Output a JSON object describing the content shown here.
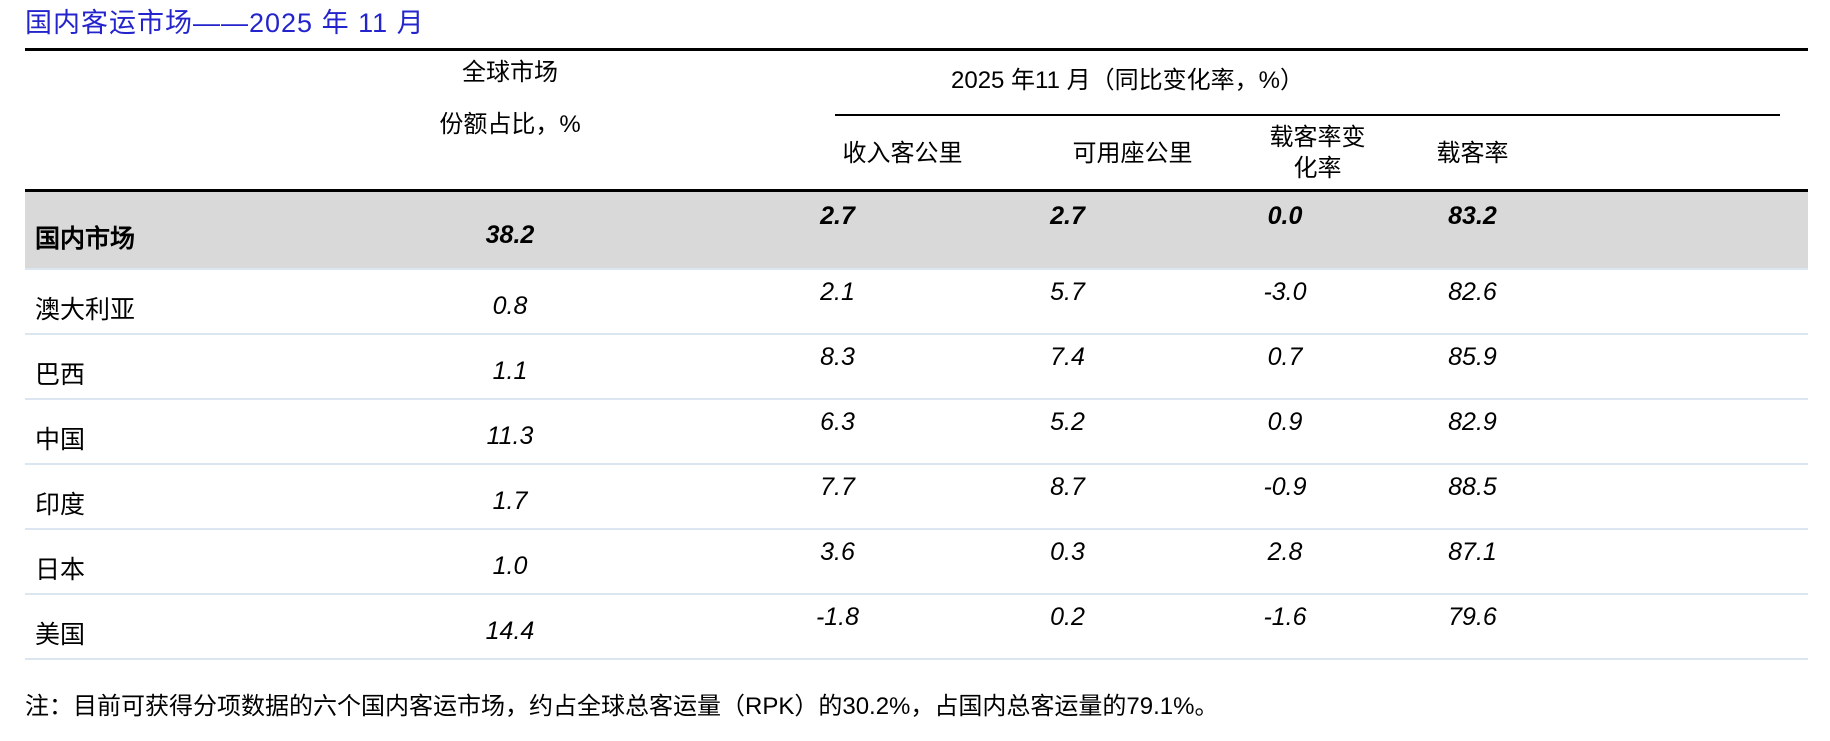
{
  "page_title": "国内客运市场——2025 年 11 月",
  "colors": {
    "title_blue": "#2424CC",
    "highlight_row_bg": "#D9D9D9",
    "row_separator": "#DCE6F1",
    "rule_black": "#000000"
  },
  "table": {
    "share_header_line1": "全球市场",
    "share_header_line2": "份额占比，%",
    "metrics_group_header": "2025 年11 月（同比变化率，%）",
    "metric_headers": [
      {
        "key": "rpk",
        "lines": [
          "收入客公里"
        ]
      },
      {
        "key": "ask",
        "lines": [
          "可用座公里"
        ]
      },
      {
        "key": "load-factor-change",
        "lines": [
          "载客率变",
          "化率"
        ]
      },
      {
        "key": "load-factor",
        "lines": [
          "载客率"
        ]
      }
    ],
    "rows": [
      {
        "key": "domestic",
        "name": "国内市场",
        "share": "38.2",
        "rpk": "2.7",
        "ask": "2.7",
        "lf_change": "0.0",
        "lf": "83.2",
        "highlight": true
      },
      {
        "key": "australia",
        "name": "澳大利亚",
        "share": "0.8",
        "rpk": "2.1",
        "ask": "5.7",
        "lf_change": "-3.0",
        "lf": "82.6",
        "highlight": false
      },
      {
        "key": "brazil",
        "name": "巴西",
        "share": "1.1",
        "rpk": "8.3",
        "ask": "7.4",
        "lf_change": "0.7",
        "lf": "85.9",
        "highlight": false
      },
      {
        "key": "china",
        "name": "中国",
        "share": "11.3",
        "rpk": "6.3",
        "ask": "5.2",
        "lf_change": "0.9",
        "lf": "82.9",
        "highlight": false
      },
      {
        "key": "india",
        "name": "印度",
        "share": "1.7",
        "rpk": "7.7",
        "ask": "8.7",
        "lf_change": "-0.9",
        "lf": "88.5",
        "highlight": false
      },
      {
        "key": "japan",
        "name": "日本",
        "share": "1.0",
        "rpk": "3.6",
        "ask": "0.3",
        "lf_change": "2.8",
        "lf": "87.1",
        "highlight": false
      },
      {
        "key": "usa",
        "name": "美国",
        "share": "14.4",
        "rpk": "-1.8",
        "ask": "0.2",
        "lf_change": "-1.6",
        "lf": "79.6",
        "highlight": false
      }
    ]
  },
  "note": "注：目前可获得分项数据的六个国内客运市场，约占全球总客运量（RPK）的30.2%，占国内总客运量的79.1%。"
}
